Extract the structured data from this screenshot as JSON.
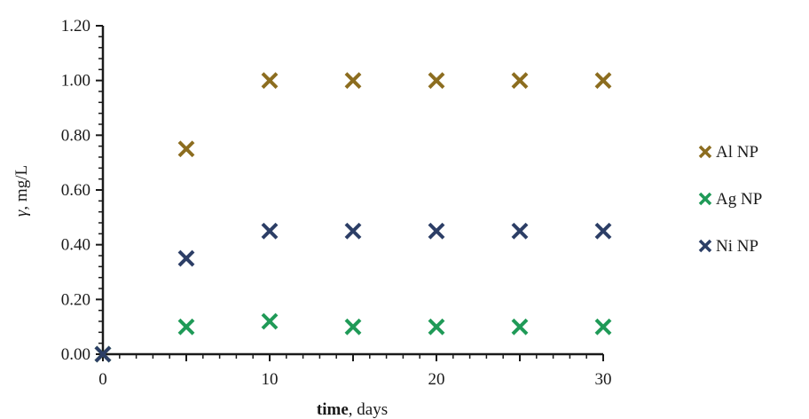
{
  "chart_data": {
    "type": "scatter",
    "xlabel": {
      "bold": "time",
      "rest": ", days"
    },
    "ylabel": {
      "italic": "γ",
      "rest": ", mg/L"
    },
    "xlim": [
      0,
      30
    ],
    "ylim": [
      0,
      1.2
    ],
    "x_ticks": [
      0,
      10,
      20,
      30
    ],
    "x_tick_labels": [
      "0",
      "10",
      "20",
      "30"
    ],
    "y_ticks": [
      0,
      0.2,
      0.4,
      0.6,
      0.8,
      1.0,
      1.2
    ],
    "y_tick_labels": [
      "0.00",
      "0.20",
      "0.40",
      "0.60",
      "0.80",
      "1.00",
      "1.20"
    ],
    "grid": false,
    "legend_position": "right",
    "marker": "x",
    "series": [
      {
        "name": "Al NP",
        "color": "#8c6d1f",
        "x": [
          0,
          5,
          10,
          15,
          20,
          25,
          30
        ],
        "y": [
          0,
          0.75,
          1.0,
          1.0,
          1.0,
          1.0,
          1.0
        ]
      },
      {
        "name": "Ag NP",
        "color": "#1f9a57",
        "x": [
          0,
          5,
          10,
          15,
          20,
          25,
          30
        ],
        "y": [
          0,
          0.1,
          0.12,
          0.1,
          0.1,
          0.1,
          0.1
        ]
      },
      {
        "name": "Ni NP",
        "color": "#2c3e66",
        "x": [
          0,
          5,
          10,
          15,
          20,
          25,
          30
        ],
        "y": [
          0,
          0.35,
          0.45,
          0.45,
          0.45,
          0.45,
          0.45
        ]
      }
    ]
  }
}
